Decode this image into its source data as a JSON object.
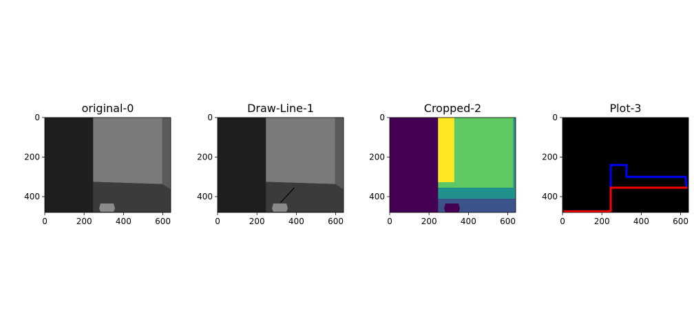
{
  "chart_data": [
    {
      "type": "image",
      "title": "original-0",
      "xlim": [
        0,
        640
      ],
      "ylim": [
        480,
        0
      ],
      "x_ticks": [
        0,
        200,
        400,
        600
      ],
      "y_ticks": [
        0,
        200,
        400
      ],
      "colors": {
        "wall_left": "#1f1f1f",
        "wall_back": "#7a7a7a",
        "wall_right": "#5a5a5a",
        "floor": "#3b3b3b",
        "object": "#8a8a8a"
      }
    },
    {
      "type": "image",
      "title": "Draw-Line-1",
      "xlim": [
        0,
        640
      ],
      "ylim": [
        480,
        0
      ],
      "x_ticks": [
        0,
        200,
        400,
        600
      ],
      "y_ticks": [
        0,
        200,
        400
      ],
      "line": {
        "from": [
          320,
          430
        ],
        "to": [
          390,
          355
        ],
        "color": "#000000"
      },
      "colors": {
        "wall_left": "#1f1f1f",
        "wall_back": "#7a7a7a",
        "wall_right": "#5a5a5a",
        "floor": "#3b3b3b",
        "object": "#8a8a8a"
      }
    },
    {
      "type": "heatmap",
      "title": "Cropped-2",
      "xlim": [
        0,
        640
      ],
      "ylim": [
        480,
        0
      ],
      "x_ticks": [
        0,
        200,
        400,
        600
      ],
      "y_ticks": [
        0,
        200,
        400
      ],
      "colors": {
        "c0": "#440154",
        "c1": "#3b528b",
        "c2": "#21918c",
        "c3": "#5ec962",
        "c4": "#fde725"
      }
    },
    {
      "type": "line",
      "title": "Plot-3",
      "xlim": [
        0,
        640
      ],
      "ylim": [
        480,
        0
      ],
      "x_ticks": [
        0,
        200,
        400,
        600
      ],
      "y_ticks": [
        0,
        200,
        400
      ],
      "background": "#000000",
      "series": [
        {
          "color": "#0000ff",
          "x": [
            245,
            245,
            325,
            325,
            625,
            630
          ],
          "y": [
            480,
            240,
            240,
            300,
            300,
            355
          ]
        },
        {
          "color": "#ff0000",
          "x": [
            0,
            245,
            245,
            640
          ],
          "y": [
            480,
            480,
            355,
            355
          ]
        }
      ]
    }
  ]
}
